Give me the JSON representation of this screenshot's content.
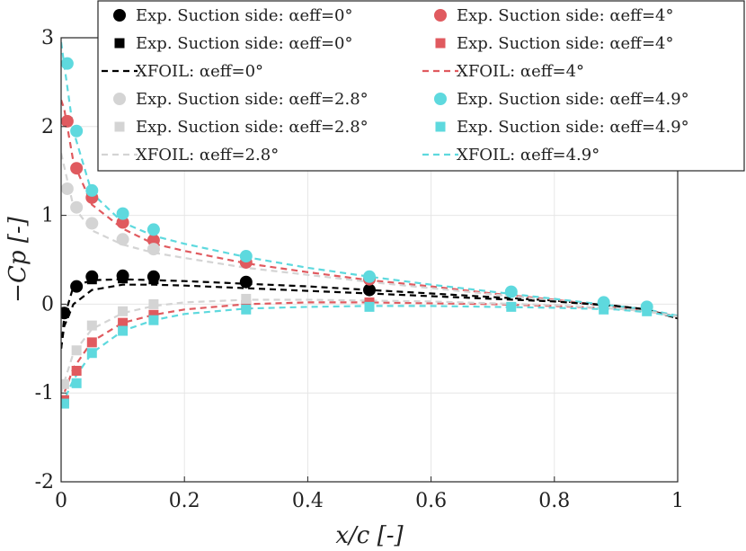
{
  "chart_data": {
    "type": "scatter",
    "xlabel": "x/c [-]",
    "ylabel": "−Cp [-]",
    "xlim": [
      0,
      1
    ],
    "ylim": [
      -2,
      3
    ],
    "xticks": [
      "0",
      "0.2",
      "0.4",
      "0.6",
      "0.8",
      "1"
    ],
    "yticks": [
      "-2",
      "-1",
      "0",
      "1",
      "2",
      "3"
    ],
    "grid": true,
    "legend_position": "top-right",
    "series": [
      {
        "name": "Exp. Suction side: αeff=0°",
        "kind": "circle",
        "color": "#000000",
        "x": [
          0.005,
          0.025,
          0.05,
          0.1,
          0.15,
          0.3,
          0.5
        ],
        "y": [
          -0.1,
          0.2,
          0.31,
          0.32,
          0.31,
          0.25,
          0.16
        ]
      },
      {
        "name": "Exp. Suction side: αeff=0°",
        "kind": "square",
        "color": "#000000",
        "x": [
          0.005,
          0.05,
          0.1,
          0.15
        ],
        "y": [
          -0.1,
          0.28,
          0.29,
          0.28
        ]
      },
      {
        "name": "XFOIL: αeff=0°",
        "kind": "line",
        "color": "#000000",
        "x": [
          0.0,
          0.005,
          0.02,
          0.05,
          0.1,
          0.15,
          0.2,
          0.3,
          0.4,
          0.5,
          0.6,
          0.7,
          0.8,
          0.9,
          0.95,
          1.0
        ],
        "y": [
          -0.5,
          -0.15,
          0.2,
          0.27,
          0.28,
          0.27,
          0.26,
          0.23,
          0.2,
          0.16,
          0.12,
          0.08,
          0.04,
          -0.02,
          -0.06,
          -0.16
        ]
      },
      {
        "name": "Exp. Suction side: αeff=4°",
        "kind": "circle",
        "color": "#e05a5f",
        "x": [
          0.01,
          0.025,
          0.05,
          0.1,
          0.15,
          0.3,
          0.5
        ],
        "y": [
          2.06,
          1.53,
          1.2,
          0.92,
          0.72,
          0.47,
          0.28
        ]
      },
      {
        "name": "Exp. Suction side: αeff=4°",
        "kind": "square",
        "color": "#e05a5f",
        "x": [
          0.005,
          0.025,
          0.05,
          0.1,
          0.15,
          0.3,
          0.5
        ],
        "y": [
          -1.08,
          -0.75,
          -0.43,
          -0.21,
          -0.12,
          -0.01,
          0.02
        ]
      },
      {
        "name": "XFOIL: αeff=4°",
        "kind": "line",
        "color": "#e05a5f",
        "x": [
          0.0,
          0.005,
          0.02,
          0.05,
          0.1,
          0.15,
          0.2,
          0.3,
          0.4,
          0.5,
          0.6,
          0.7,
          0.8,
          0.9,
          0.95,
          1.0
        ],
        "y": [
          2.3,
          2.2,
          1.6,
          1.12,
          0.85,
          0.68,
          0.6,
          0.46,
          0.36,
          0.27,
          0.2,
          0.12,
          0.05,
          -0.03,
          -0.07,
          -0.14
        ]
      },
      {
        "name": "Exp. Suction side: αeff=2.8°",
        "kind": "circle",
        "color": "#d4d4d4",
        "x": [
          0.01,
          0.025,
          0.05,
          0.1,
          0.15
        ],
        "y": [
          1.3,
          1.09,
          0.91,
          0.73,
          0.62
        ]
      },
      {
        "name": "Exp. Suction side: αeff=2.8°",
        "kind": "square",
        "color": "#d4d4d4",
        "x": [
          0.005,
          0.025,
          0.05,
          0.1,
          0.15,
          0.3
        ],
        "y": [
          -0.9,
          -0.52,
          -0.24,
          -0.08,
          0.0,
          0.06
        ]
      },
      {
        "name": "XFOIL: αeff=2.8°",
        "kind": "line",
        "color": "#d4d4d4",
        "x": [
          0.0,
          0.005,
          0.02,
          0.05,
          0.1,
          0.15,
          0.2,
          0.3,
          0.4,
          0.5,
          0.6,
          0.7,
          0.8,
          0.9,
          0.95,
          1.0
        ],
        "y": [
          1.7,
          1.55,
          1.1,
          0.83,
          0.67,
          0.58,
          0.52,
          0.41,
          0.33,
          0.25,
          0.18,
          0.11,
          0.04,
          -0.03,
          -0.07,
          -0.14
        ]
      },
      {
        "name": "Exp. Suction side: αeff=4.9°",
        "kind": "circle",
        "color": "#5ed9de",
        "x": [
          0.01,
          0.025,
          0.05,
          0.1,
          0.15,
          0.3,
          0.5,
          0.73,
          0.88,
          0.95
        ],
        "y": [
          2.71,
          1.95,
          1.28,
          1.02,
          0.84,
          0.54,
          0.31,
          0.14,
          0.02,
          -0.03
        ]
      },
      {
        "name": "Exp. Suction side: αeff=4.9°",
        "kind": "square",
        "color": "#5ed9de",
        "x": [
          0.005,
          0.025,
          0.05,
          0.1,
          0.15,
          0.3,
          0.5,
          0.73,
          0.88,
          0.95
        ],
        "y": [
          -1.12,
          -0.89,
          -0.55,
          -0.3,
          -0.18,
          -0.06,
          -0.03,
          -0.03,
          -0.06,
          -0.08
        ]
      },
      {
        "name": "XFOIL: αeff=4.9°",
        "kind": "line",
        "color": "#5ed9de",
        "x": [
          0.0,
          0.005,
          0.02,
          0.05,
          0.1,
          0.15,
          0.2,
          0.3,
          0.4,
          0.5,
          0.6,
          0.7,
          0.8,
          0.9,
          0.95,
          1.0
        ],
        "y": [
          2.95,
          2.7,
          1.95,
          1.25,
          0.92,
          0.77,
          0.68,
          0.53,
          0.41,
          0.31,
          0.22,
          0.14,
          0.06,
          -0.02,
          -0.06,
          -0.13
        ]
      },
      {
        "name": "",
        "kind": "line",
        "color": "#000000",
        "x": [
          0.0,
          0.005,
          0.02,
          0.05,
          0.1,
          0.15,
          0.2,
          0.3,
          0.4,
          0.5,
          0.6,
          0.7,
          0.8,
          0.9,
          0.95,
          1.0
        ],
        "y": [
          -0.5,
          -0.25,
          0.0,
          0.16,
          0.22,
          0.22,
          0.21,
          0.18,
          0.15,
          0.12,
          0.09,
          0.06,
          0.03,
          -0.02,
          -0.06,
          -0.16
        ]
      },
      {
        "name": "",
        "kind": "line",
        "color": "#e05a5f",
        "x": [
          0.0,
          0.005,
          0.02,
          0.05,
          0.1,
          0.15,
          0.2,
          0.3,
          0.4,
          0.5,
          0.6,
          0.7,
          0.8,
          0.9,
          0.95,
          1.0
        ],
        "y": [
          -1.1,
          -1.0,
          -0.72,
          -0.42,
          -0.21,
          -0.12,
          -0.06,
          0.0,
          0.02,
          0.02,
          0.01,
          0.0,
          -0.02,
          -0.05,
          -0.08,
          -0.14
        ]
      },
      {
        "name": "",
        "kind": "line",
        "color": "#d4d4d4",
        "x": [
          0.0,
          0.005,
          0.02,
          0.05,
          0.1,
          0.15,
          0.2,
          0.3,
          0.4,
          0.5,
          0.6,
          0.7,
          0.8,
          0.9,
          0.95,
          1.0
        ],
        "y": [
          -1.0,
          -0.88,
          -0.55,
          -0.28,
          -0.1,
          -0.02,
          0.02,
          0.05,
          0.05,
          0.04,
          0.03,
          0.01,
          -0.01,
          -0.05,
          -0.08,
          -0.14
        ]
      },
      {
        "name": "",
        "kind": "line",
        "color": "#5ed9de",
        "x": [
          0.0,
          0.005,
          0.02,
          0.05,
          0.1,
          0.15,
          0.2,
          0.3,
          0.4,
          0.5,
          0.6,
          0.7,
          0.8,
          0.9,
          0.95,
          1.0
        ],
        "y": [
          -1.15,
          -1.08,
          -0.85,
          -0.55,
          -0.3,
          -0.18,
          -0.11,
          -0.05,
          -0.03,
          -0.02,
          -0.02,
          -0.03,
          -0.04,
          -0.06,
          -0.09,
          -0.14
        ]
      }
    ]
  }
}
